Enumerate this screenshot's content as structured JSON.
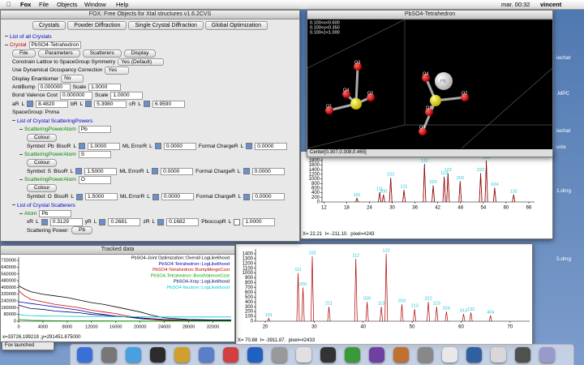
{
  "menubar": {
    "app": "Fox",
    "menus": [
      "File",
      "Objects",
      "Window",
      "Help"
    ],
    "clock": "mar. 00:32",
    "user": "vincent"
  },
  "desktop_icons": [
    "iechat",
    ".MPC",
    "iechat",
    "unix",
    "1.dmg",
    "5.dmg"
  ],
  "notice": "Fox launched",
  "main_window": {
    "title": "FOX: Free Objects for Xtal structures v1.6.2CVS",
    "tabs": [
      "Crystals",
      "Powder Diffraction",
      "Single Crystal Diffraction",
      "Global Optimization"
    ],
    "tree": [
      {
        "level": 0,
        "items": [
          {
            "label": "List of all Crystals",
            "color": "#0000cc"
          }
        ]
      },
      {
        "level": 0,
        "items": [
          {
            "label": "Crystal",
            "color": "#cc0000"
          },
          {
            "input": "PbSO4-Tetrahedron"
          }
        ]
      },
      {
        "level": 1,
        "items": [
          {
            "button": "File"
          },
          {
            "button": "Parameters"
          },
          {
            "button": "Scatterers"
          },
          {
            "button": "Display"
          }
        ]
      },
      {
        "level": 1,
        "items": [
          "Constrain Lattice to SpaceGroup Symmetry",
          {
            "select": "Yes (Default)"
          }
        ]
      },
      {
        "level": 1,
        "items": [
          "Use Dynamical Occupancy Correction",
          {
            "select": "Yes"
          }
        ]
      },
      {
        "level": 1,
        "items": [
          "Display Enantiomer",
          {
            "select": "No"
          }
        ]
      },
      {
        "level": 1,
        "items": [
          "AntiBump",
          {
            "input": "0.000000"
          },
          "Scale",
          {
            "input": "1.0000"
          }
        ]
      },
      {
        "level": 1,
        "items": [
          "Bond Valence Cost",
          {
            "input": "0.000000"
          },
          "Scale",
          {
            "input": "1.0000"
          }
        ]
      },
      {
        "level": 1,
        "items": [
          "aR",
          "L",
          {
            "check": true
          },
          {
            "input": "8.4820"
          },
          "bR",
          "L",
          {
            "check": true
          },
          {
            "input": "5.3980"
          },
          "cR",
          "L",
          {
            "check": true
          },
          {
            "input": "6.9590"
          }
        ]
      },
      {
        "level": 1,
        "items": [
          "SpaceGroup: Pnma"
        ]
      },
      {
        "level": 1,
        "items": [
          {
            "label": "List of Crystal ScatteringPowers",
            "color": "#0000cc"
          }
        ]
      },
      {
        "level": 2,
        "items": [
          {
            "label": "ScatteringPowerAtom",
            "color": "#008800"
          },
          {
            "input": "Pb"
          }
        ]
      },
      {
        "level": 3,
        "items": [
          {
            "button": "Colour"
          }
        ]
      },
      {
        "level": 3,
        "items": [
          "Symbol: Pb",
          "BisoR",
          "L",
          {
            "check": true
          },
          {
            "input": "1.0000"
          },
          "ML ErrorR",
          "L",
          {
            "check": true
          },
          {
            "input": "0.0000"
          },
          "Formal ChargeR",
          "L",
          {
            "check": true
          },
          {
            "input": "0.0000"
          }
        ]
      },
      {
        "level": 2,
        "items": [
          {
            "label": "ScatteringPowerAtom",
            "color": "#008800"
          },
          {
            "input": "S"
          }
        ]
      },
      {
        "level": 3,
        "items": [
          {
            "button": "Colour"
          }
        ]
      },
      {
        "level": 3,
        "items": [
          "Symbol: S",
          "BisoR",
          "L",
          {
            "check": true
          },
          {
            "input": "1.5000"
          },
          "ML ErrorR",
          "L",
          {
            "check": true
          },
          {
            "input": "0.0000"
          },
          "Formal ChargeR",
          "L",
          {
            "check": true
          },
          {
            "input": "0.0000"
          }
        ]
      },
      {
        "level": 2,
        "items": [
          {
            "label": "ScatteringPowerAtom",
            "color": "#008800"
          },
          {
            "input": "O"
          }
        ]
      },
      {
        "level": 3,
        "items": [
          {
            "button": "Colour"
          }
        ]
      },
      {
        "level": 3,
        "items": [
          "Symbol: O",
          "BisoR",
          "L",
          {
            "check": true
          },
          {
            "input": "1.5000"
          },
          "ML ErrorR",
          "L",
          {
            "check": true
          },
          {
            "input": "0.0000"
          },
          "Formal ChargeR",
          "L",
          {
            "check": true
          },
          {
            "input": "0.0000"
          }
        ]
      },
      {
        "level": 1,
        "items": [
          {
            "label": "List of Crystal Scatterers",
            "color": "#0000cc"
          }
        ]
      },
      {
        "level": 2,
        "items": [
          {
            "label": "Atom",
            "color": "#008800"
          },
          {
            "input": "Pb"
          }
        ]
      },
      {
        "level": 3,
        "items": [
          "xR",
          "L",
          {
            "check": true
          },
          {
            "input": "0.3129"
          },
          "yR",
          "L",
          {
            "check": true
          },
          {
            "input": "0.2681"
          },
          "zR",
          "L",
          {
            "check": true
          },
          {
            "input": "0.1682"
          },
          "PboccupR",
          "L",
          {
            "check": false
          },
          {
            "input": "1.0000"
          }
        ]
      },
      {
        "level": 3,
        "items": [
          "Scattering Power:",
          {
            "button": "Pb"
          }
        ]
      }
    ]
  },
  "view3d": {
    "title": "PbSO4-Tetrahedron",
    "limits": [
      "0.100<x<0.600",
      "0.100<y<0.350",
      "0.100<z<1.000"
    ],
    "atoms": [
      "O3",
      "O4",
      "S",
      "O1",
      "O2",
      "O4",
      "Pb",
      "S",
      "O1",
      "O2",
      "O3"
    ],
    "status": "Center[0.307,0.308,0.465]"
  },
  "powder_top": {
    "type": "peaks",
    "xlim": [
      11.5,
      67.5
    ],
    "ylim": [
      0,
      1900
    ],
    "xticks": [
      12,
      18,
      24,
      30,
      36,
      42,
      48,
      54,
      60,
      66
    ],
    "yticks": [
      0,
      200,
      400,
      600,
      800,
      1000,
      1200,
      1400,
      1600,
      1800
    ],
    "series": [
      {
        "color": "#000000",
        "x": [
          20.7,
          26.7,
          27.7,
          29.6,
          33.1,
          38.5,
          40.8,
          43.7,
          44.7,
          47.9,
          53.3,
          54.8,
          57.0,
          62.0
        ],
        "values": [
          160,
          420,
          320,
          1050,
          520,
          1650,
          720,
          1100,
          1250,
          900,
          1250,
          1800,
          620,
          320
        ]
      },
      {
        "color": "#b00000",
        "x": [
          20.7,
          26.7,
          27.7,
          29.6,
          33.1,
          38.5,
          40.8,
          43.7,
          44.7,
          47.9,
          53.3,
          54.8,
          57.0,
          62.0
        ],
        "values": [
          140,
          400,
          300,
          980,
          500,
          1550,
          680,
          1050,
          1180,
          860,
          1200,
          1700,
          580,
          300
        ]
      }
    ],
    "hkl": [
      "101",
      "111",
      "200",
      "102",
      "211",
      "112",
      "020",
      "113",
      "122",
      "203",
      "222",
      "123",
      "024",
      "132"
    ],
    "status": [
      "X= 22.21",
      "I= -211.10.",
      "pixel=#243"
    ]
  },
  "powder_bottom": {
    "type": "peaks",
    "xlim": [
      18,
      74
    ],
    "ylim": [
      0,
      1500
    ],
    "xticks": [
      20,
      30,
      40,
      50,
      60,
      70
    ],
    "yticks": [
      0,
      100,
      200,
      300,
      400,
      500,
      600,
      700,
      800,
      900,
      1000,
      1100,
      1200,
      1300,
      1400
    ],
    "series": [
      {
        "color": "#b00000",
        "x": [
          20.7,
          26.7,
          27.7,
          29.6,
          33.0,
          38.5,
          40.8,
          43.7,
          44.7,
          47.9,
          50.5,
          53.3,
          55.0,
          57.0,
          60.5,
          62.0,
          66.0
        ],
        "values": [
          60,
          1000,
          700,
          1350,
          300,
          1300,
          400,
          300,
          1400,
          350,
          250,
          400,
          300,
          200,
          150,
          180,
          120
        ]
      }
    ],
    "hkl": [
      "101",
      "111",
      "200",
      "102",
      "211",
      "112",
      "020",
      "113",
      "122",
      "203",
      "213",
      "222",
      "123",
      "024",
      "313",
      "132",
      "404"
    ],
    "status": [
      "X= 70.88",
      "I= -3911.87.",
      "pixel=#2433"
    ]
  },
  "tracked": {
    "title": "Tracked data",
    "type": "line",
    "xlim": [
      0,
      35000
    ],
    "ylim": [
      0,
      760000
    ],
    "xticks": [
      0,
      4000,
      8000,
      12000,
      16000,
      20000,
      24000,
      28000,
      32000
    ],
    "yticks": [
      0,
      80000,
      160000,
      240000,
      320000,
      400000,
      480000,
      560000,
      640000,
      720000
    ],
    "x": [
      0,
      1000,
      2000,
      4000,
      6000,
      8000,
      10000,
      12000,
      14000,
      16000,
      18000,
      20000,
      22000,
      24000,
      28000,
      32000,
      35000
    ],
    "series": [
      {
        "name": "PbSO4-Joint Optimization::Overall LogLikelihood",
        "color": "#000000",
        "values": [
          420000,
          380000,
          350000,
          320000,
          300000,
          280000,
          250000,
          220000,
          200000,
          170000,
          140000,
          110000,
          70000,
          40000,
          20000,
          15000,
          15000
        ]
      },
      {
        "name": "PbSO4-Tetrahedron::LogLikelihood",
        "color": "#0000aa",
        "values": [
          230000,
          220000,
          210000,
          190000,
          170000,
          150000,
          130000,
          100000,
          80000,
          60000,
          50000,
          30000,
          20000,
          10000,
          5000,
          5000,
          5000
        ]
      },
      {
        "name": "PbSO4-Tetrahedron::BumpMergeCost",
        "color": "#cc0000",
        "values": [
          360000,
          300000,
          260000,
          230000,
          200000,
          180000,
          160000,
          130000,
          110000,
          90000,
          60000,
          40000,
          20000,
          10000,
          5000,
          5000,
          5000
        ]
      },
      {
        "name": "PbSO4-Tetrahedron::BondValenceCost",
        "color": "#00aa00",
        "values": [
          20000,
          15000,
          10000,
          8000,
          6000,
          5000,
          5000,
          4000,
          4000,
          3000,
          3000,
          3000,
          2000,
          2000,
          2000,
          2000,
          2000
        ]
      },
      {
        "name": "PbSO4-Xray::LogLikelihood",
        "color": "#000066",
        "values": [
          190000,
          170000,
          150000,
          140000,
          120000,
          110000,
          100000,
          80000,
          70000,
          60000,
          50000,
          40000,
          30000,
          20000,
          15000,
          12000,
          12000
        ]
      },
      {
        "name": "PbSO4-Neutron::LogLikelihood",
        "color": "#00cccc",
        "values": [
          80000,
          70000,
          65000,
          62000,
          60000,
          58000,
          56000,
          55000,
          54000,
          53000,
          52000,
          51000,
          50000,
          50000,
          50000,
          50000,
          50000
        ]
      }
    ],
    "status": "x=33726.199219 ,y=291451.875000"
  }
}
